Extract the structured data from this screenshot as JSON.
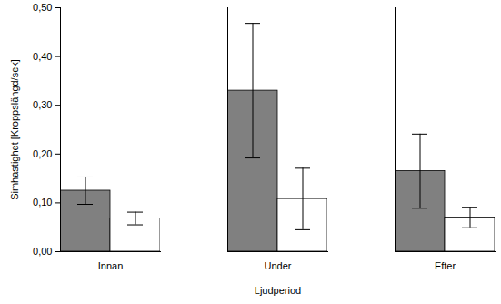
{
  "chart_data": {
    "type": "bar",
    "x_label": "Ljudperiod",
    "y_label": "Simhastighet [Kroppslängd/sek]",
    "categories": [
      "Innan",
      "Under",
      "Efter"
    ],
    "series": [
      {
        "color": "#808080",
        "values": [
          0.125,
          0.33,
          0.165
        ],
        "errors": [
          0.028,
          0.138,
          0.076
        ]
      },
      {
        "color": "#ffffff",
        "values": [
          0.068,
          0.108,
          0.07
        ],
        "errors": [
          0.013,
          0.063,
          0.021
        ]
      }
    ],
    "ylim": [
      0,
      0.5
    ],
    "yticks": [
      {
        "value": 0,
        "label": "0,00"
      },
      {
        "value": 0.1,
        "label": "0,10"
      },
      {
        "value": 0.2,
        "label": "0,20"
      },
      {
        "value": 0.3,
        "label": "0,30"
      },
      {
        "value": 0.4,
        "label": "0,40"
      },
      {
        "value": 0.5,
        "label": "0,50"
      }
    ],
    "grid": false
  }
}
